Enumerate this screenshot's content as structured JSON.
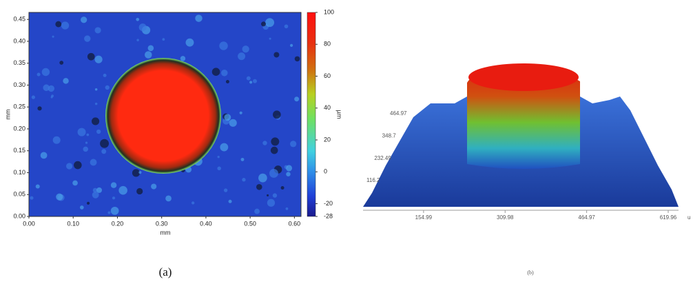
{
  "chart_data": [
    {
      "type": "heatmap",
      "xlabel": "mm",
      "ylabel": "mm",
      "colorbar_label": "µm",
      "xlim": [
        0,
        0.615
      ],
      "ylim": [
        0,
        0.466
      ],
      "xticks": [
        {
          "value": 0,
          "label": "0.00"
        },
        {
          "value": 0.1,
          "label": "0.10"
        },
        {
          "value": 0.2,
          "label": "0.20"
        },
        {
          "value": 0.3,
          "label": "0.30"
        },
        {
          "value": 0.4,
          "label": "0.40"
        },
        {
          "value": 0.5,
          "label": "0.50"
        },
        {
          "value": 0.6,
          "label": "0.60"
        }
      ],
      "yticks": [
        {
          "value": 0,
          "label": "0.00"
        },
        {
          "value": 0.05,
          "label": "0.05"
        },
        {
          "value": 0.1,
          "label": "0.10"
        },
        {
          "value": 0.15,
          "label": "0.15"
        },
        {
          "value": 0.2,
          "label": "0.20"
        },
        {
          "value": 0.25,
          "label": "0.25"
        },
        {
          "value": 0.3,
          "label": "0.30"
        },
        {
          "value": 0.35,
          "label": "0.35"
        },
        {
          "value": 0.4,
          "label": "0.40"
        },
        {
          "value": 0.45,
          "label": "0.45"
        }
      ],
      "clim": [
        -28,
        100
      ],
      "cticks": [
        100,
        80,
        60,
        40,
        20,
        0,
        -20,
        -28
      ],
      "caption": "(a)"
    },
    {
      "type": "surface3d",
      "x_unit": "u",
      "xlim": [
        0,
        619.96
      ],
      "xticks": [
        154.99,
        309.98,
        464.97,
        619.96
      ],
      "yticks": [
        116.2,
        232.49,
        348.7,
        464.97
      ],
      "caption": "(b)"
    }
  ]
}
